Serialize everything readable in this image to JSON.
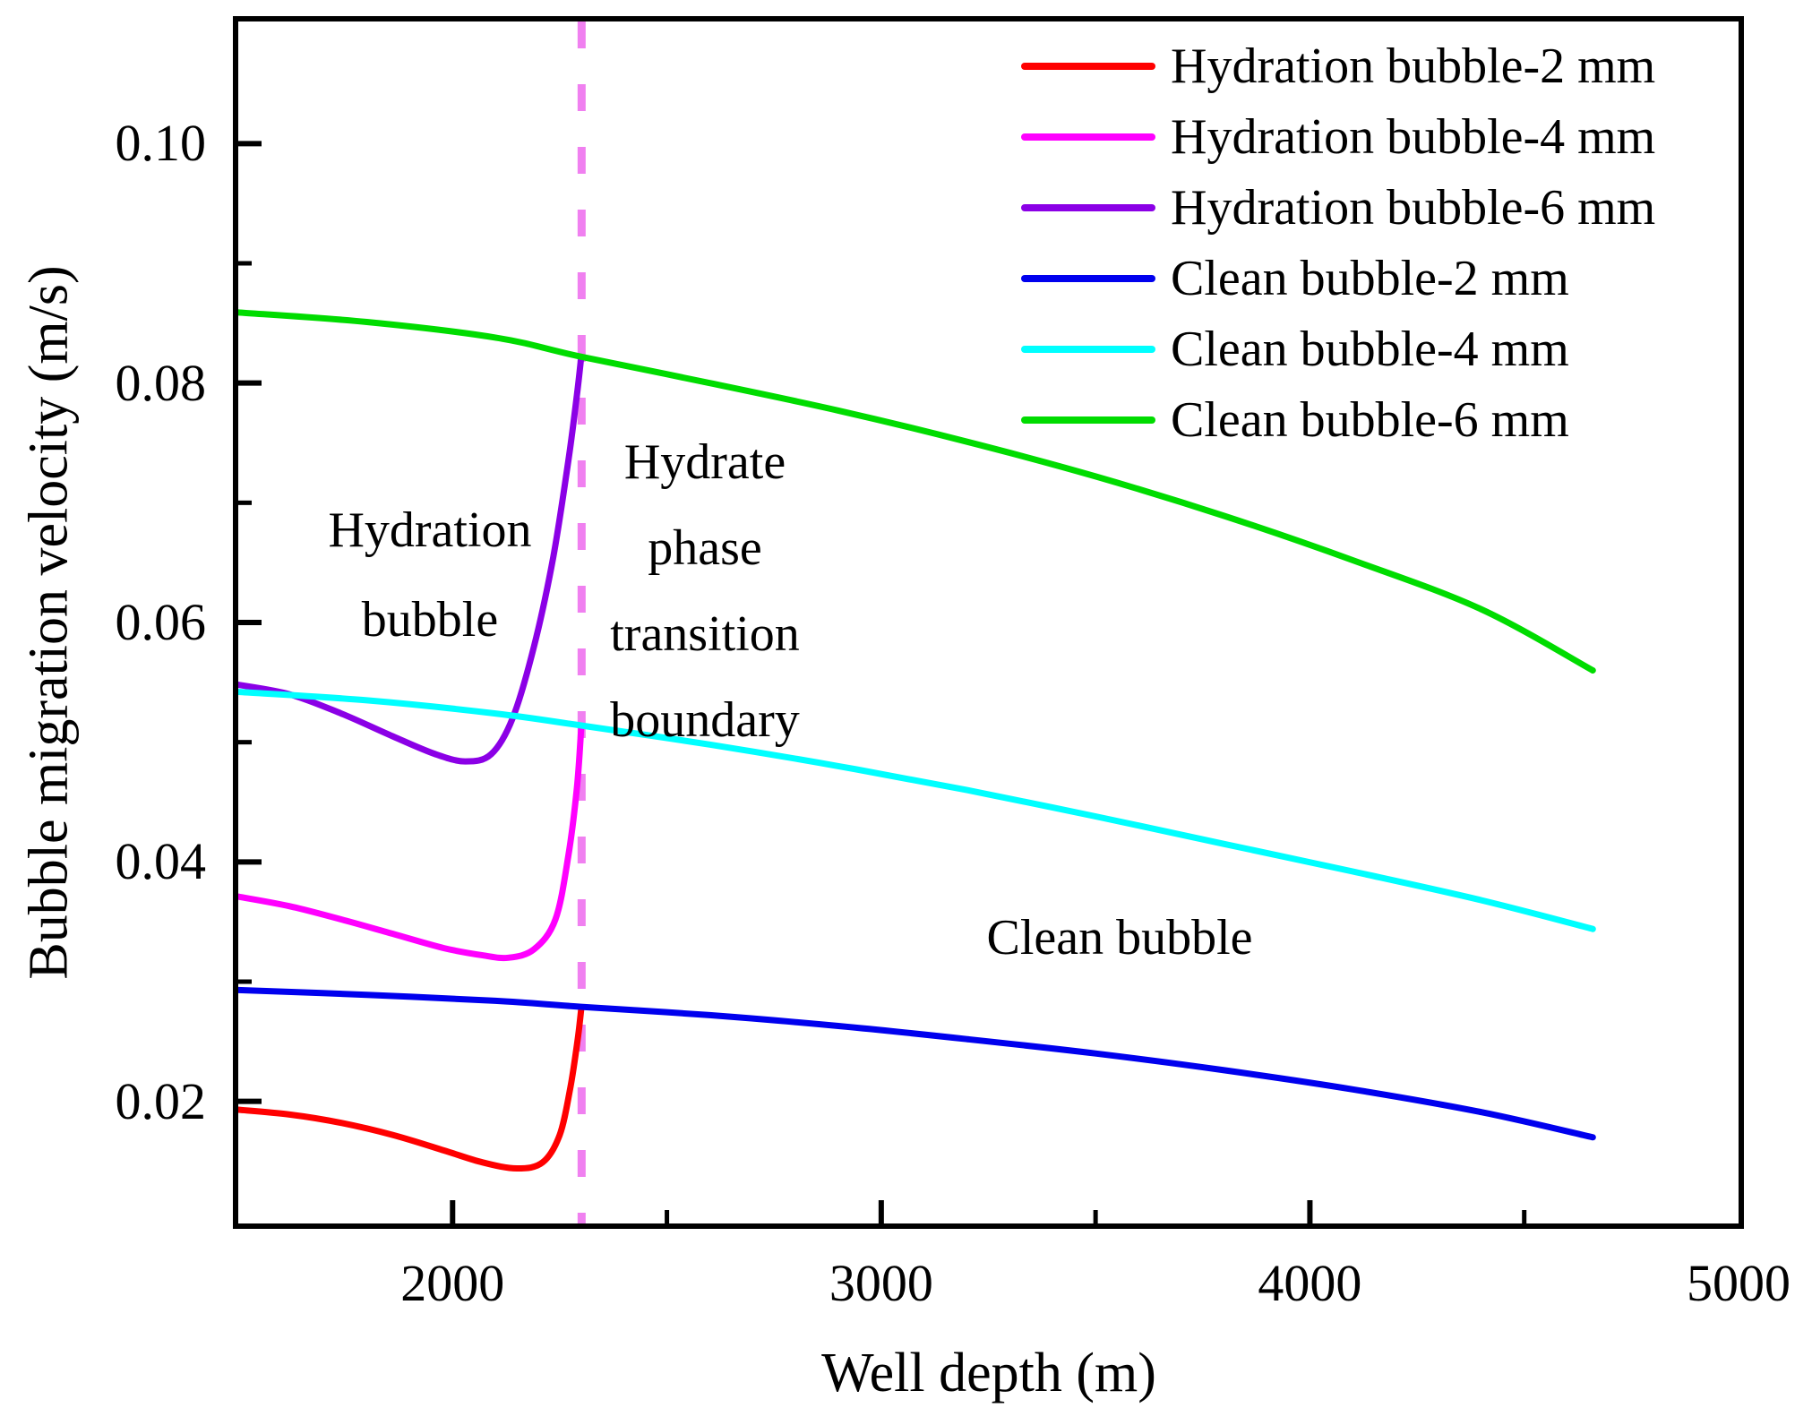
{
  "axes": {
    "x": {
      "label": "Well depth (m)",
      "min": 1500,
      "max": 5000,
      "major_ticks": [
        {
          "value": 2000,
          "label": "2000",
          "mark": true
        },
        {
          "value": 3000,
          "label": "3000",
          "mark": true
        },
        {
          "value": 4000,
          "label": "4000",
          "mark": true
        },
        {
          "value": 5000,
          "label": "5000",
          "mark": false
        }
      ],
      "minor_ticks": [
        2500,
        3500,
        4500
      ]
    },
    "y": {
      "label": "Bubble migration velocity (m/s)",
      "min": 0.0098,
      "max": 0.1102,
      "major_ticks": [
        {
          "value": 0.02,
          "label": "0.02",
          "mark": true
        },
        {
          "value": 0.04,
          "label": "0.04",
          "mark": true
        },
        {
          "value": 0.06,
          "label": "0.06",
          "mark": true
        },
        {
          "value": 0.08,
          "label": "0.08",
          "mark": true
        },
        {
          "value": 0.1,
          "label": "0.10",
          "mark": true
        }
      ],
      "minor_ticks": [
        0.03,
        0.05,
        0.07,
        0.09
      ]
    }
  },
  "boundary_line": {
    "depth": 2301,
    "color": "#F080F0",
    "style": "dashed"
  },
  "annotations": {
    "hydration_bubble": "Hydration\nbubble",
    "hydrate_boundary": "Hydrate\nphase\ntransition\nboundary",
    "clean_bubble": "Clean bubble"
  },
  "legend": [
    {
      "label": "Hydration bubble-2 mm",
      "color": "#FF0000"
    },
    {
      "label": "Hydration bubble-4 mm",
      "color": "#FF00FF"
    },
    {
      "label": "Hydration bubble-6 mm",
      "color": "#8B00E6"
    },
    {
      "label": "Clean bubble-2 mm",
      "color": "#0000EE"
    },
    {
      "label": "Clean bubble-4 mm",
      "color": "#00FFFF"
    },
    {
      "label": "Clean bubble-6 mm",
      "color": "#00DC00"
    }
  ],
  "chart_data": {
    "type": "line",
    "title": "",
    "xlabel": "Well depth (m)",
    "ylabel": "Bubble migration velocity (m/s)",
    "xlim": [
      1500,
      5000
    ],
    "ylim": [
      0.0098,
      0.1102
    ],
    "grid": false,
    "legend_position": "top-right",
    "boundary_depth_m": 2301,
    "series": [
      {
        "name": "Hydration bubble-2 mm",
        "color": "#FF0000",
        "points": [
          [
            1500,
            0.0193
          ],
          [
            1620,
            0.0189
          ],
          [
            1740,
            0.0182
          ],
          [
            1860,
            0.0172
          ],
          [
            1980,
            0.0159
          ],
          [
            2070,
            0.0149
          ],
          [
            2150,
            0.0144
          ],
          [
            2210,
            0.0149
          ],
          [
            2250,
            0.0172
          ],
          [
            2275,
            0.0212
          ],
          [
            2292,
            0.0252
          ],
          [
            2300,
            0.0277
          ]
        ]
      },
      {
        "name": "Hydration bubble-4 mm",
        "color": "#FF00FF",
        "points": [
          [
            1500,
            0.0371
          ],
          [
            1620,
            0.0363
          ],
          [
            1740,
            0.0352
          ],
          [
            1860,
            0.034
          ],
          [
            1980,
            0.0328
          ],
          [
            2070,
            0.0322
          ],
          [
            2130,
            0.032
          ],
          [
            2190,
            0.0327
          ],
          [
            2240,
            0.0352
          ],
          [
            2270,
            0.0405
          ],
          [
            2290,
            0.0462
          ],
          [
            2300,
            0.0512
          ]
        ]
      },
      {
        "name": "Hydration bubble-6 mm",
        "color": "#8B00E6",
        "points": [
          [
            1500,
            0.0548
          ],
          [
            1620,
            0.054
          ],
          [
            1740,
            0.0524
          ],
          [
            1860,
            0.0505
          ],
          [
            1960,
            0.049
          ],
          [
            2030,
            0.0484
          ],
          [
            2090,
            0.049
          ],
          [
            2140,
            0.052
          ],
          [
            2190,
            0.058
          ],
          [
            2235,
            0.0655
          ],
          [
            2270,
            0.0735
          ],
          [
            2290,
            0.079
          ],
          [
            2300,
            0.0822
          ]
        ]
      },
      {
        "name": "Clean bubble-2 mm",
        "color": "#0000EE",
        "points": [
          [
            1500,
            0.0293
          ],
          [
            1800,
            0.0289
          ],
          [
            2100,
            0.0284
          ],
          [
            2300,
            0.0279
          ],
          [
            2600,
            0.0272
          ],
          [
            2900,
            0.0263
          ],
          [
            3200,
            0.0252
          ],
          [
            3500,
            0.024
          ],
          [
            3800,
            0.0226
          ],
          [
            4100,
            0.021
          ],
          [
            4400,
            0.0191
          ],
          [
            4660,
            0.017
          ]
        ]
      },
      {
        "name": "Clean bubble-4 mm",
        "color": "#00FFFF",
        "points": [
          [
            1500,
            0.0542
          ],
          [
            1800,
            0.0535
          ],
          [
            2100,
            0.0524
          ],
          [
            2300,
            0.0514
          ],
          [
            2600,
            0.0498
          ],
          [
            2900,
            0.048
          ],
          [
            3200,
            0.046
          ],
          [
            3500,
            0.0438
          ],
          [
            3800,
            0.0415
          ],
          [
            4100,
            0.0392
          ],
          [
            4400,
            0.0368
          ],
          [
            4660,
            0.0344
          ]
        ]
      },
      {
        "name": "Clean bubble-6 mm",
        "color": "#00DC00",
        "points": [
          [
            1500,
            0.0859
          ],
          [
            1800,
            0.0851
          ],
          [
            2100,
            0.0838
          ],
          [
            2300,
            0.0822
          ],
          [
            2600,
            0.08
          ],
          [
            2900,
            0.0777
          ],
          [
            3200,
            0.0751
          ],
          [
            3500,
            0.0722
          ],
          [
            3800,
            0.0689
          ],
          [
            4100,
            0.0652
          ],
          [
            4400,
            0.0611
          ],
          [
            4660,
            0.056
          ]
        ]
      }
    ]
  }
}
